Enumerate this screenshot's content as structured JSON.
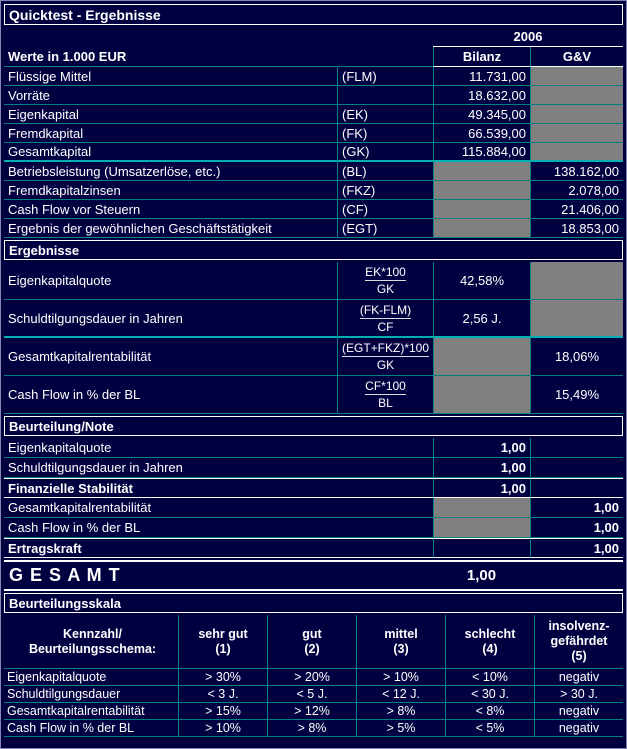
{
  "colors": {
    "background": "#000040",
    "grid": "#008080",
    "grid_bright": "#00B2B2",
    "section_border": "#FFFFFF",
    "disabled_cell": "#808080",
    "text": "#FFFFFF"
  },
  "header": {
    "title": "Quicktest - Ergebnisse",
    "year": "2006",
    "unit_label": "Werte in 1.000 EUR",
    "col_bilanz": "Bilanz",
    "col_guv": "G&V"
  },
  "base_rows": [
    {
      "label": "Flüssige Mittel",
      "code": "(FLM)",
      "bilanz": "11.731,00"
    },
    {
      "label": "Vorräte",
      "code": "",
      "bilanz": "18.632,00"
    },
    {
      "label": "Eigenkapital",
      "code": "(EK)",
      "bilanz": "49.345,00"
    },
    {
      "label": "Fremdkapital",
      "code": "(FK)",
      "bilanz": "66.539,00"
    },
    {
      "label": "Gesamtkapital",
      "code": "(GK)",
      "bilanz": "115.884,00"
    },
    {
      "label": "Betriebsleistung (Umsatzerlöse, etc.)",
      "code": "(BL)",
      "guv": "138.162,00"
    },
    {
      "label": "Fremdkapitalzinsen",
      "code": "(FKZ)",
      "guv": "2.078,00"
    },
    {
      "label": "Cash Flow vor Steuern",
      "code": "(CF)",
      "guv": "21.406,00"
    },
    {
      "label": "Ergebnis der gewöhnlichen Geschäftstätigkeit",
      "code": "(EGT)",
      "guv": "18.853,00"
    }
  ],
  "ergebnisse": {
    "title": "Ergebnisse",
    "rows": [
      {
        "label": "Eigenkapitalquote",
        "num": "EK*100",
        "den": "GK",
        "bilanz": "42,58%"
      },
      {
        "label": "Schuldtilgungsdauer in Jahren",
        "num": "(FK-FLM)",
        "den": "CF",
        "bilanz": "2,56 J."
      },
      {
        "label": "Gesamtkapitalrentabilität",
        "num": "(EGT+FKZ)*100",
        "den": "GK",
        "guv": "18,06%"
      },
      {
        "label": "Cash Flow in % der BL",
        "num": "CF*100",
        "den": "BL",
        "guv": "15,49%"
      }
    ]
  },
  "beurteilung": {
    "title": "Beurteilung/Note",
    "rows": [
      {
        "label": "Eigenkapitalquote",
        "bilanz": "1,00"
      },
      {
        "label": "Schuldtilgungsdauer in Jahren",
        "bilanz": "1,00"
      },
      {
        "label": "Finanzielle Stabilität",
        "bilanz": "1,00"
      },
      {
        "label": "Gesamtkapitalrentabilität",
        "guv": "1,00"
      },
      {
        "label": "Cash Flow in % der BL",
        "guv": "1,00"
      },
      {
        "label": "Ertragskraft",
        "guv": "1,00"
      }
    ]
  },
  "gesamt": {
    "label": "G E S A M T",
    "value": "1,00"
  },
  "skala": {
    "title": "Beurteilungsskala",
    "header": {
      "kennzahl": "Kennzahl/\nBeurteilungsschema:",
      "cols": [
        "sehr gut\n(1)",
        "gut\n(2)",
        "mittel\n(3)",
        "schlecht\n(4)",
        "insolvenz-\ngefährdet\n(5)"
      ]
    },
    "rows": [
      {
        "label": "Eigenkapitalquote",
        "values": [
          "> 30%",
          "> 20%",
          "> 10%",
          "< 10%",
          "negativ"
        ]
      },
      {
        "label": "Schuldtilgungsdauer",
        "values": [
          "< 3 J.",
          "< 5 J.",
          "< 12 J.",
          "< 30 J.",
          "> 30 J."
        ]
      },
      {
        "label": "Gesamtkapitalrentabilität",
        "values": [
          "> 15%",
          "> 12%",
          "> 8%",
          "< 8%",
          "negativ"
        ]
      },
      {
        "label": "Cash Flow in % der BL",
        "values": [
          "> 10%",
          "> 8%",
          "> 5%",
          "< 5%",
          "negativ"
        ]
      }
    ]
  }
}
